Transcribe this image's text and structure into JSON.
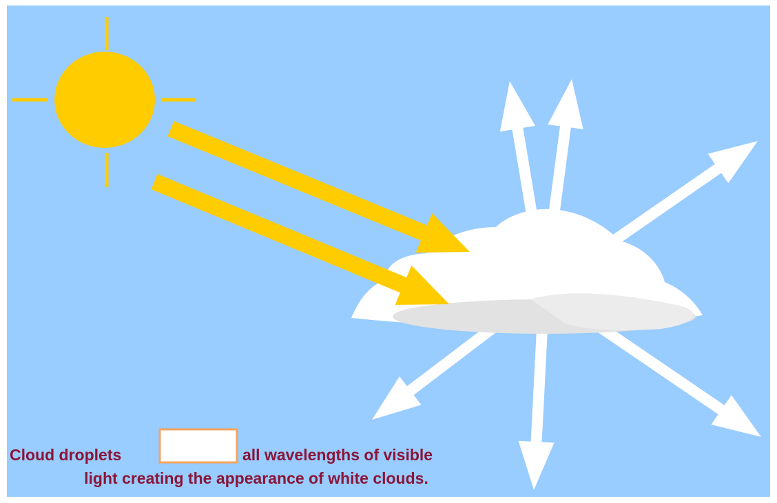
{
  "caption": {
    "line1_start": "Cloud droplets",
    "line1_end": "all wavelengths of visible",
    "line2": "light creating the appearance of white clouds."
  }
}
